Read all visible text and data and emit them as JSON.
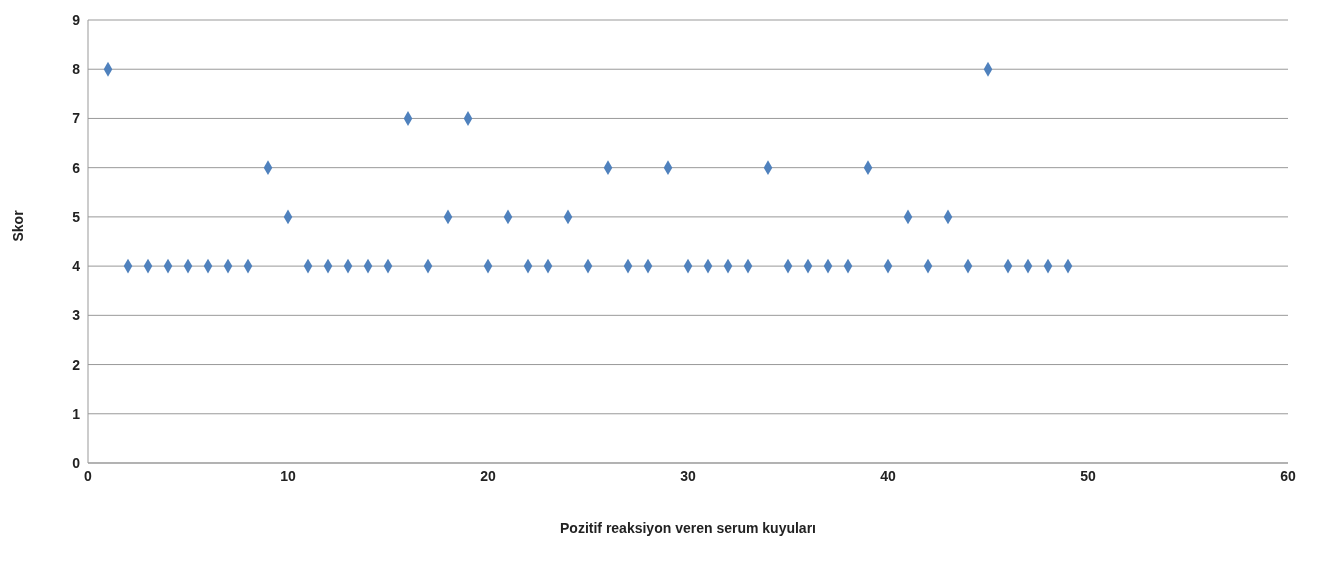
{
  "chart_data": {
    "type": "scatter",
    "xlabel": "Pozitif reaksiyon veren serum kuyuları",
    "ylabel": "Skor",
    "x": [
      1,
      2,
      3,
      4,
      5,
      6,
      7,
      8,
      9,
      10,
      11,
      12,
      13,
      14,
      15,
      16,
      17,
      18,
      19,
      20,
      21,
      22,
      23,
      24,
      25,
      26,
      27,
      28,
      29,
      30,
      31,
      32,
      33,
      34,
      35,
      36,
      37,
      38,
      39,
      40,
      41,
      42,
      43,
      44,
      45,
      46,
      47,
      48,
      49
    ],
    "values": [
      8,
      4,
      4,
      4,
      4,
      4,
      4,
      4,
      6,
      5,
      4,
      4,
      4,
      4,
      4,
      7,
      4,
      5,
      7,
      4,
      5,
      4,
      4,
      5,
      4,
      6,
      4,
      4,
      6,
      4,
      4,
      4,
      4,
      6,
      4,
      4,
      4,
      4,
      6,
      4,
      5,
      4,
      5,
      4,
      8,
      4,
      4,
      4,
      4
    ],
    "color": "#4f81bd",
    "marker": "diamond",
    "grid": "y",
    "legend": false,
    "xlim": [
      0,
      60
    ],
    "xticks": [
      0,
      10,
      20,
      30,
      40,
      50,
      60
    ],
    "ylim": [
      0,
      9
    ],
    "yticks": [
      0,
      1,
      2,
      3,
      4,
      5,
      6,
      7,
      8,
      9
    ]
  }
}
